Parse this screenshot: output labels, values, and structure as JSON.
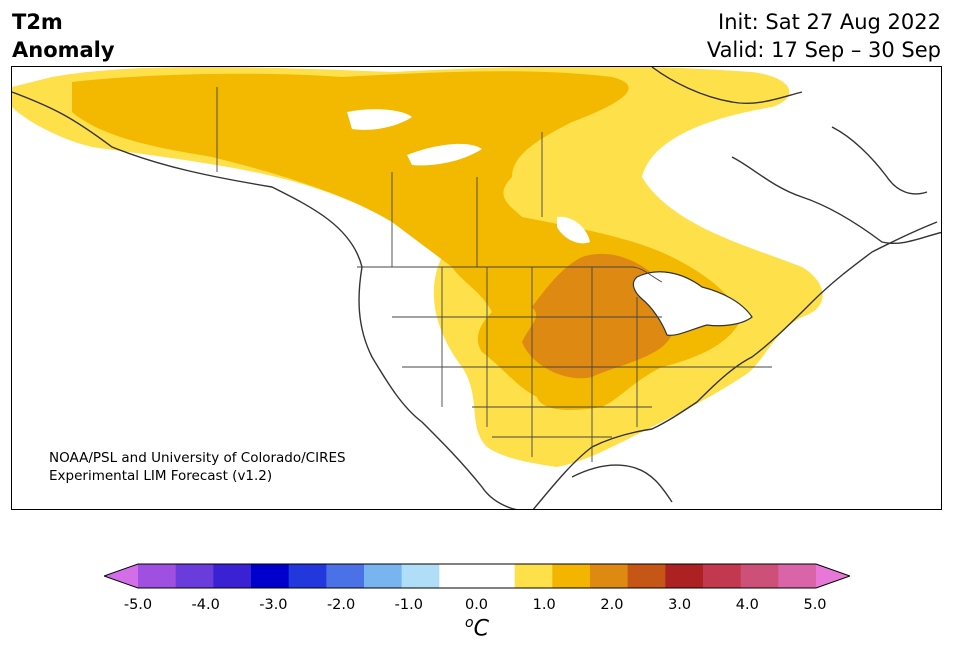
{
  "title": {
    "line1": "T2m",
    "line2": "Anomaly"
  },
  "forecast": {
    "init": "Init: Sat 27 Aug 2022",
    "valid": "Valid: 17 Sep – 30 Sep"
  },
  "credit": {
    "line1": "NOAA/PSL and University of Colorado/CIRES",
    "line2": "Experimental LIM Forecast (v1.2)"
  },
  "legend": {
    "unit_base": "o",
    "unit_letter": "C",
    "ticks": [
      "-5.0",
      "-4.0",
      "-3.0",
      "-2.0",
      "-1.0",
      "0.0",
      "1.0",
      "2.0",
      "3.0",
      "4.0",
      "5.0"
    ],
    "under_color": "#d26fe8",
    "over_color": "#e878d8",
    "colors": [
      "#a050e0",
      "#6a3cdc",
      "#3a22d4",
      "#0000cc",
      "#2238dc",
      "#4a72e6",
      "#78b4f0",
      "#b0def8",
      "#ffffff",
      "#ffffff",
      "#fde04a",
      "#f3b500",
      "#de8a12",
      "#c65616",
      "#ac2222",
      "#c2384e",
      "#cc5078",
      "#da64a8"
    ]
  },
  "anomaly_levels": {
    "light": "#fde04a",
    "medium": "#f3b800",
    "strong": "#de8a12"
  }
}
